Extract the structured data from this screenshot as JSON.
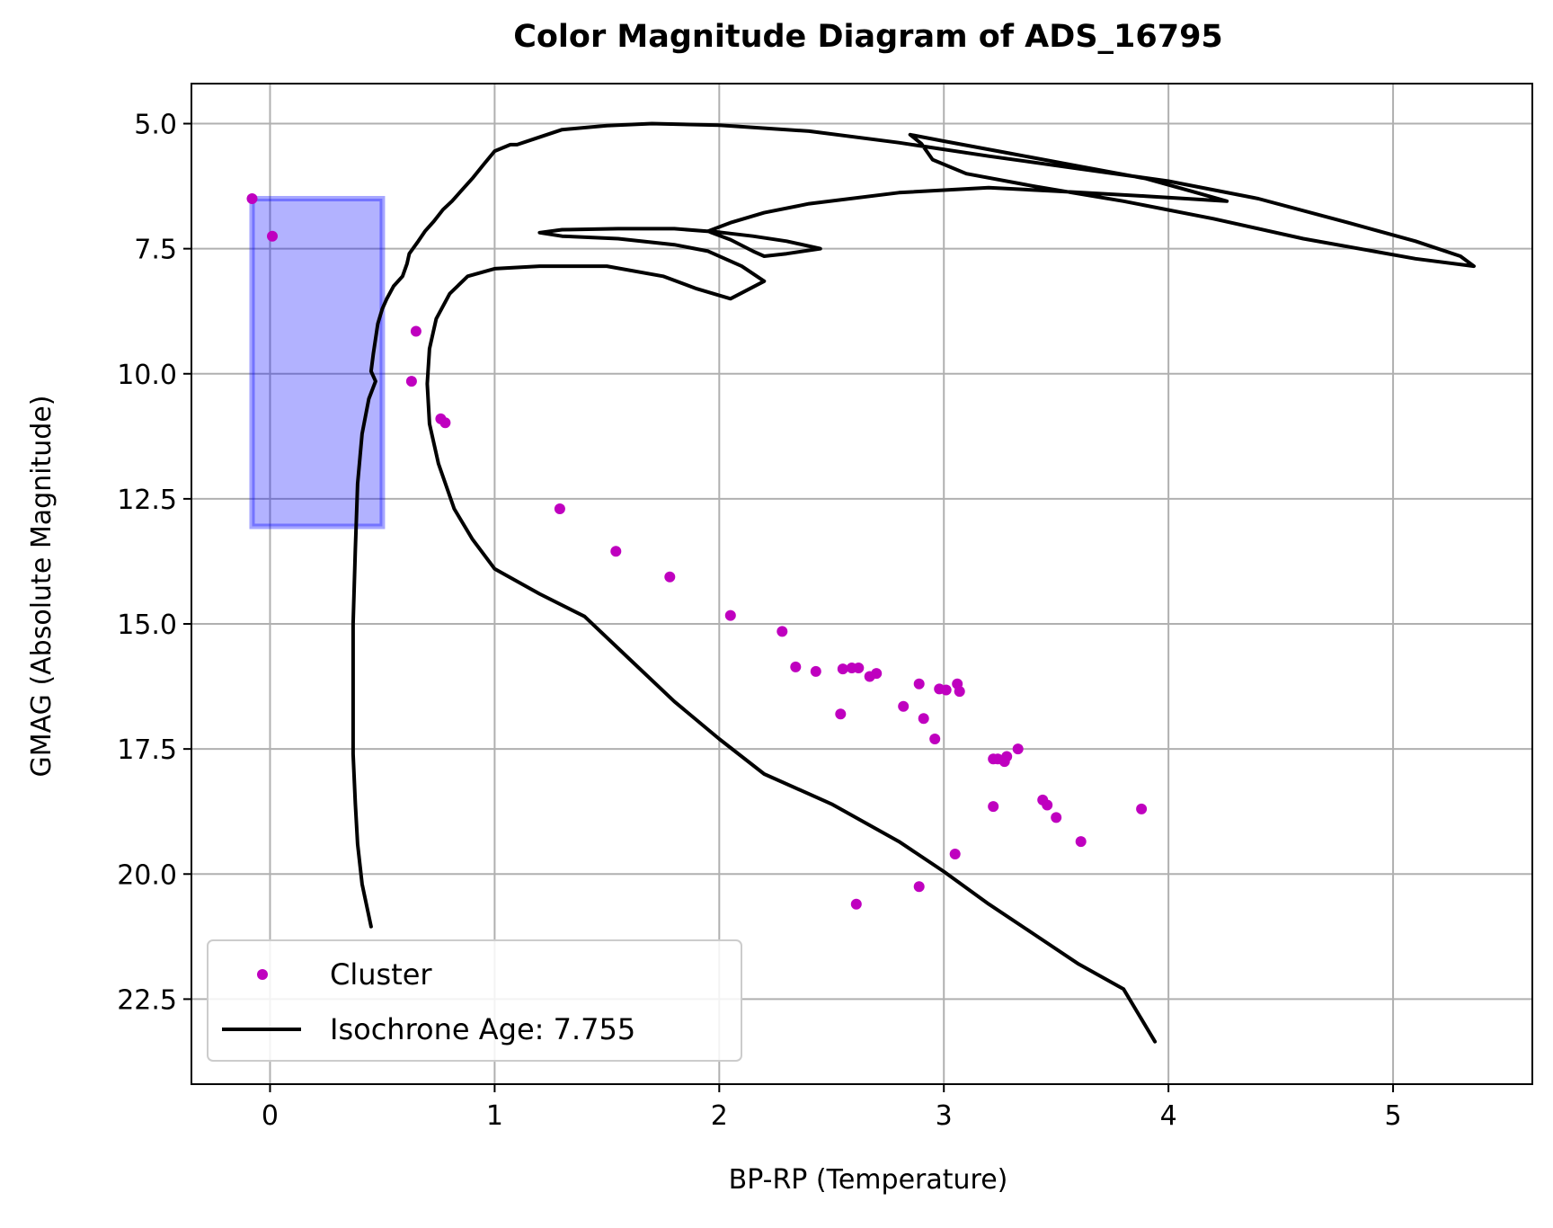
{
  "chart_data": {
    "type": "scatter",
    "title": "Color Magnitude Diagram of ADS_16795",
    "xlabel": "BP-RP (Temperature)",
    "ylabel": "GMAG (Absolute Magnitude)",
    "xlim": [
      -0.35,
      5.62
    ],
    "ylim": [
      24.2,
      4.2
    ],
    "y_inverted": true,
    "grid": true,
    "x_ticks": [
      0,
      1,
      2,
      3,
      4,
      5
    ],
    "x_tick_labels": [
      "0",
      "1",
      "2",
      "3",
      "4",
      "5"
    ],
    "y_ticks": [
      5.0,
      7.5,
      10.0,
      12.5,
      15.0,
      17.5,
      20.0,
      22.5
    ],
    "y_tick_labels": [
      "5.0",
      "7.5",
      "10.0",
      "12.5",
      "15.0",
      "17.5",
      "20.0",
      "22.5"
    ],
    "legend_position": "lower-left",
    "highlight_region": {
      "x": [
        -0.08,
        0.5
      ],
      "y": [
        6.5,
        13.05
      ],
      "color": "#0000ff"
    },
    "series": [
      {
        "name": "Cluster",
        "kind": "scatter",
        "color": "#bf00bf",
        "points": [
          [
            -0.08,
            6.5
          ],
          [
            0.01,
            7.25
          ],
          [
            0.65,
            9.15
          ],
          [
            0.63,
            10.15
          ],
          [
            0.76,
            10.9
          ],
          [
            0.78,
            10.98
          ],
          [
            1.29,
            12.7
          ],
          [
            1.54,
            13.55
          ],
          [
            1.78,
            14.06
          ],
          [
            2.05,
            14.83
          ],
          [
            2.28,
            15.15
          ],
          [
            2.34,
            15.86
          ],
          [
            2.43,
            15.95
          ],
          [
            2.55,
            15.9
          ],
          [
            2.59,
            15.88
          ],
          [
            2.62,
            15.88
          ],
          [
            2.67,
            16.05
          ],
          [
            2.7,
            15.99
          ],
          [
            2.54,
            16.8
          ],
          [
            2.82,
            16.65
          ],
          [
            2.89,
            16.2
          ],
          [
            2.91,
            16.89
          ],
          [
            2.96,
            17.3
          ],
          [
            2.98,
            16.3
          ],
          [
            3.01,
            16.32
          ],
          [
            3.06,
            16.2
          ],
          [
            3.07,
            16.35
          ],
          [
            3.22,
            17.7
          ],
          [
            3.24,
            17.7
          ],
          [
            3.27,
            17.75
          ],
          [
            3.28,
            17.65
          ],
          [
            3.33,
            17.5
          ],
          [
            3.22,
            18.65
          ],
          [
            3.44,
            18.52
          ],
          [
            3.46,
            18.62
          ],
          [
            3.5,
            18.87
          ],
          [
            3.61,
            19.35
          ],
          [
            3.88,
            18.7
          ],
          [
            3.05,
            19.6
          ],
          [
            2.89,
            20.25
          ],
          [
            2.61,
            20.6
          ]
        ]
      },
      {
        "name": "Isochrone Age: 7.755",
        "kind": "line",
        "color": "#000000",
        "segments": [
          [
            [
              0.45,
              21.05
            ],
            [
              0.41,
              20.2
            ],
            [
              0.39,
              19.4
            ],
            [
              0.38,
              18.6
            ],
            [
              0.37,
              17.6
            ],
            [
              0.37,
              16.2
            ],
            [
              0.37,
              15.0
            ],
            [
              0.38,
              13.5
            ],
            [
              0.39,
              12.2
            ],
            [
              0.41,
              11.2
            ],
            [
              0.44,
              10.5
            ],
            [
              0.47,
              10.15
            ],
            [
              0.45,
              9.95
            ],
            [
              0.46,
              9.6
            ],
            [
              0.48,
              9.0
            ],
            [
              0.5,
              8.7
            ],
            [
              0.52,
              8.5
            ],
            [
              0.55,
              8.25
            ],
            [
              0.59,
              8.05
            ],
            [
              0.61,
              7.8
            ],
            [
              0.62,
              7.6
            ],
            [
              0.66,
              7.35
            ],
            [
              0.69,
              7.15
            ],
            [
              0.73,
              6.95
            ],
            [
              0.77,
              6.72
            ],
            [
              0.81,
              6.55
            ],
            [
              0.85,
              6.35
            ],
            [
              0.9,
              6.1
            ],
            [
              0.95,
              5.82
            ],
            [
              1.0,
              5.55
            ],
            [
              1.07,
              5.42
            ],
            [
              1.1,
              5.42
            ],
            [
              1.18,
              5.3
            ],
            [
              1.3,
              5.12
            ],
            [
              1.5,
              5.04
            ],
            [
              1.7,
              5.0
            ],
            [
              2.0,
              5.03
            ],
            [
              2.4,
              5.15
            ],
            [
              2.8,
              5.38
            ],
            [
              3.2,
              5.65
            ],
            [
              3.6,
              5.9
            ],
            [
              4.0,
              6.15
            ],
            [
              4.4,
              6.5
            ],
            [
              4.8,
              6.98
            ],
            [
              5.1,
              7.35
            ],
            [
              5.3,
              7.65
            ],
            [
              5.36,
              7.85
            ],
            [
              5.1,
              7.7
            ],
            [
              4.6,
              7.3
            ],
            [
              4.2,
              6.9
            ],
            [
              3.8,
              6.55
            ],
            [
              3.4,
              6.25
            ],
            [
              3.1,
              6.0
            ],
            [
              2.95,
              5.72
            ],
            [
              2.9,
              5.4
            ],
            [
              2.85,
              5.22
            ],
            [
              3.0,
              5.35
            ],
            [
              3.3,
              5.6
            ],
            [
              3.6,
              5.85
            ],
            [
              3.9,
              6.1
            ],
            [
              4.1,
              6.35
            ],
            [
              4.26,
              6.55
            ],
            [
              3.9,
              6.45
            ],
            [
              3.5,
              6.35
            ],
            [
              3.2,
              6.28
            ],
            [
              2.8,
              6.38
            ],
            [
              2.4,
              6.6
            ],
            [
              2.2,
              6.78
            ],
            [
              2.05,
              6.98
            ],
            [
              1.95,
              7.15
            ],
            [
              2.05,
              7.32
            ],
            [
              2.15,
              7.55
            ],
            [
              2.2,
              7.65
            ],
            [
              2.3,
              7.6
            ],
            [
              2.45,
              7.5
            ],
            [
              2.3,
              7.35
            ],
            [
              2.15,
              7.25
            ],
            [
              2.0,
              7.17
            ],
            [
              1.8,
              7.1
            ],
            [
              1.55,
              7.1
            ],
            [
              1.3,
              7.12
            ],
            [
              1.2,
              7.18
            ],
            [
              1.3,
              7.25
            ],
            [
              1.55,
              7.3
            ],
            [
              1.8,
              7.42
            ],
            [
              1.95,
              7.55
            ],
            [
              2.1,
              7.85
            ],
            [
              2.2,
              8.15
            ],
            [
              2.05,
              8.5
            ],
            [
              1.9,
              8.3
            ],
            [
              1.75,
              8.05
            ],
            [
              1.5,
              7.85
            ],
            [
              1.2,
              7.85
            ],
            [
              1.0,
              7.9
            ],
            [
              0.88,
              8.05
            ],
            [
              0.8,
              8.4
            ],
            [
              0.74,
              8.9
            ],
            [
              0.71,
              9.5
            ],
            [
              0.7,
              10.2
            ],
            [
              0.71,
              11.0
            ],
            [
              0.75,
              11.8
            ],
            [
              0.82,
              12.7
            ],
            [
              0.9,
              13.3
            ],
            [
              1.0,
              13.9
            ],
            [
              1.2,
              14.4
            ],
            [
              1.4,
              14.85
            ],
            [
              1.6,
              15.7
            ],
            [
              1.8,
              16.55
            ],
            [
              2.0,
              17.3
            ],
            [
              2.2,
              18.0
            ],
            [
              2.5,
              18.6
            ],
            [
              2.8,
              19.35
            ],
            [
              3.0,
              19.95
            ],
            [
              3.2,
              20.6
            ],
            [
              3.4,
              21.2
            ],
            [
              3.6,
              21.8
            ],
            [
              3.8,
              22.3
            ],
            [
              3.94,
              23.35
            ]
          ]
        ]
      }
    ]
  }
}
